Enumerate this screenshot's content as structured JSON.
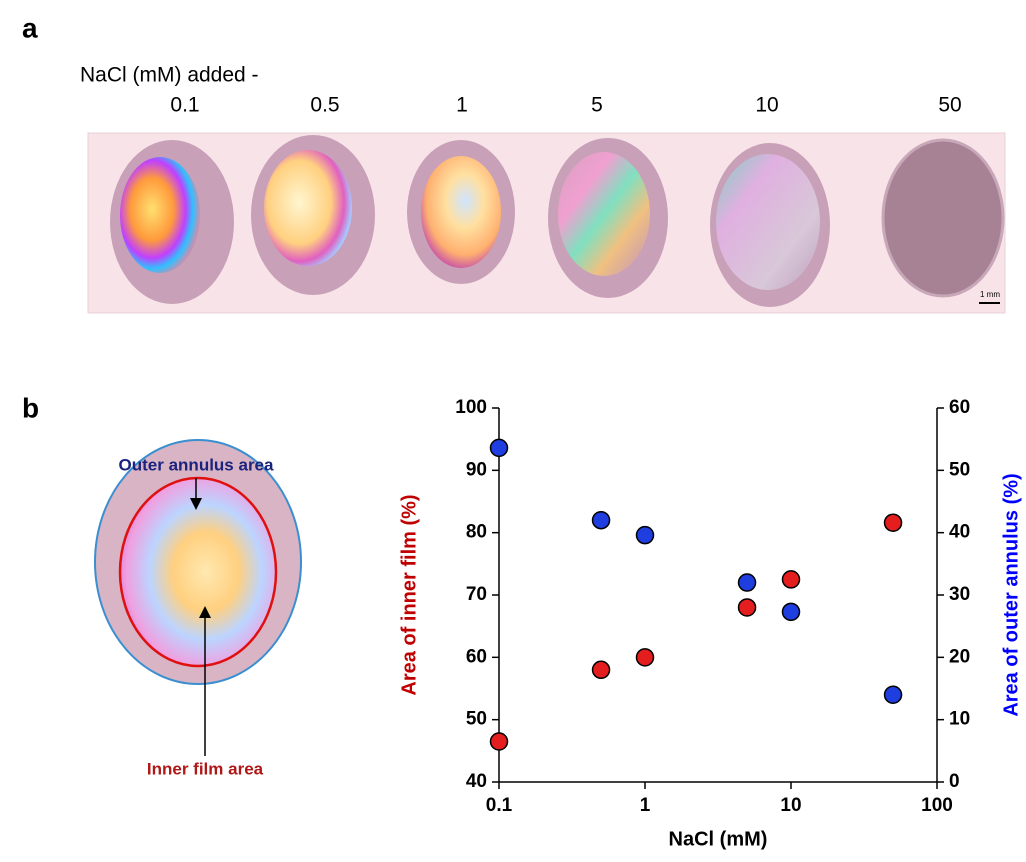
{
  "panel_a": {
    "label": "a",
    "header": "NaCl (mM) added -",
    "concentrations": [
      "0.1",
      "0.5",
      "1",
      "5",
      "10",
      "50"
    ],
    "scale_bar": "1 mm"
  },
  "panel_b": {
    "label": "b",
    "outer_label": "Outer annulus area",
    "inner_label": "Inner film area"
  },
  "chart_data": {
    "type": "scatter",
    "x_label": "NaCl (mM)",
    "y_label": "Area of inner film (%)",
    "y2_label": "Area of outer annulus (%)",
    "y_label_color": "#c00000",
    "y2_label_color": "#0000ff",
    "x_log": true,
    "x": [
      0.1,
      0.5,
      1,
      5,
      10,
      50
    ],
    "xlim": [
      0.1,
      100
    ],
    "xticks": [
      0.1,
      1,
      10,
      100
    ],
    "ylim": [
      40,
      100
    ],
    "yticks": [
      40,
      50,
      60,
      70,
      80,
      90,
      100
    ],
    "y2lim": [
      0,
      60
    ],
    "y2ticks": [
      0,
      10,
      20,
      30,
      40,
      50,
      60
    ],
    "series": [
      {
        "color": "#e41e1e",
        "values": [
          46.5,
          58,
          60,
          68,
          72.5,
          81.6
        ]
      },
      {
        "color": "#1f3ee0",
        "axis": "y2",
        "values": [
          53.6,
          42,
          39.6,
          32,
          27.3,
          14
        ]
      }
    ]
  }
}
